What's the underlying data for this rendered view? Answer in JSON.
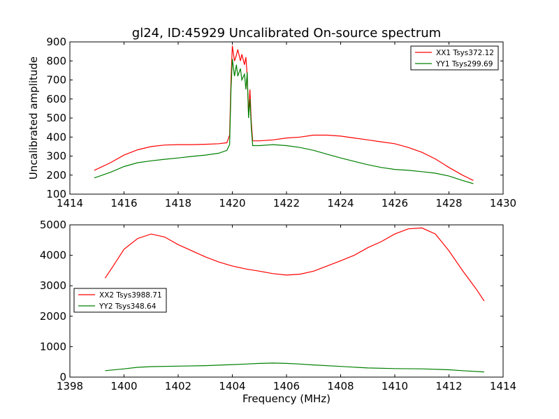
{
  "title": "gl24, ID:45929 Uncalibrated On-source spectrum",
  "colors": {
    "xx": "#ff0000",
    "yy": "#008000"
  },
  "chart_data": [
    {
      "type": "line",
      "ylabel": "Uncalibrated amplitude",
      "xlim": [
        1414,
        1430
      ],
      "ylim": [
        100,
        900
      ],
      "xticks": [
        1414,
        1416,
        1418,
        1420,
        1422,
        1424,
        1426,
        1428,
        1430
      ],
      "yticks": [
        100,
        200,
        300,
        400,
        500,
        600,
        700,
        800,
        900
      ],
      "legend_position": "top-right",
      "series": [
        {
          "name": "XX1 Tsys372.12",
          "color": "#ff0000",
          "points": [
            [
              1414.9,
              225
            ],
            [
              1415.5,
              265
            ],
            [
              1416,
              305
            ],
            [
              1416.5,
              333
            ],
            [
              1417,
              350
            ],
            [
              1417.5,
              358
            ],
            [
              1418,
              360
            ],
            [
              1418.5,
              360
            ],
            [
              1419,
              362
            ],
            [
              1419.5,
              365
            ],
            [
              1419.8,
              370
            ],
            [
              1419.9,
              410
            ],
            [
              1419.95,
              700
            ],
            [
              1420.0,
              880
            ],
            [
              1420.08,
              800
            ],
            [
              1420.15,
              830
            ],
            [
              1420.2,
              860
            ],
            [
              1420.3,
              800
            ],
            [
              1420.35,
              835
            ],
            [
              1420.45,
              780
            ],
            [
              1420.5,
              820
            ],
            [
              1420.55,
              720
            ],
            [
              1420.6,
              520
            ],
            [
              1420.65,
              650
            ],
            [
              1420.7,
              480
            ],
            [
              1420.75,
              380
            ],
            [
              1421,
              380
            ],
            [
              1421.5,
              385
            ],
            [
              1422,
              395
            ],
            [
              1422.5,
              400
            ],
            [
              1423,
              410
            ],
            [
              1423.5,
              410
            ],
            [
              1424,
              405
            ],
            [
              1424.5,
              395
            ],
            [
              1425,
              385
            ],
            [
              1425.5,
              375
            ],
            [
              1426,
              365
            ],
            [
              1426.5,
              345
            ],
            [
              1427,
              320
            ],
            [
              1427.5,
              285
            ],
            [
              1428,
              240
            ],
            [
              1428.5,
              200
            ],
            [
              1428.9,
              172
            ]
          ]
        },
        {
          "name": "YY1 Tsys299.69",
          "color": "#008000",
          "points": [
            [
              1414.9,
              185
            ],
            [
              1415.5,
              215
            ],
            [
              1416,
              245
            ],
            [
              1416.5,
              265
            ],
            [
              1417,
              275
            ],
            [
              1417.5,
              283
            ],
            [
              1418,
              290
            ],
            [
              1418.5,
              298
            ],
            [
              1419,
              305
            ],
            [
              1419.5,
              315
            ],
            [
              1419.8,
              330
            ],
            [
              1419.9,
              360
            ],
            [
              1419.95,
              650
            ],
            [
              1420.0,
              810
            ],
            [
              1420.08,
              720
            ],
            [
              1420.15,
              780
            ],
            [
              1420.2,
              720
            ],
            [
              1420.3,
              760
            ],
            [
              1420.35,
              700
            ],
            [
              1420.45,
              730
            ],
            [
              1420.5,
              650
            ],
            [
              1420.55,
              740
            ],
            [
              1420.6,
              500
            ],
            [
              1420.65,
              600
            ],
            [
              1420.7,
              450
            ],
            [
              1420.75,
              355
            ],
            [
              1421,
              355
            ],
            [
              1421.5,
              360
            ],
            [
              1422,
              355
            ],
            [
              1422.5,
              345
            ],
            [
              1423,
              330
            ],
            [
              1423.5,
              310
            ],
            [
              1424,
              290
            ],
            [
              1424.5,
              272
            ],
            [
              1425,
              255
            ],
            [
              1425.5,
              240
            ],
            [
              1426,
              230
            ],
            [
              1426.5,
              225
            ],
            [
              1427,
              218
            ],
            [
              1427.5,
              210
            ],
            [
              1428,
              195
            ],
            [
              1428.5,
              172
            ],
            [
              1428.9,
              155
            ]
          ]
        }
      ]
    },
    {
      "type": "line",
      "xlabel": "Frequency (MHz)",
      "xlim": [
        1398,
        1414
      ],
      "ylim": [
        0,
        5000
      ],
      "xticks": [
        1398,
        1400,
        1402,
        1404,
        1406,
        1408,
        1410,
        1412,
        1414
      ],
      "yticks": [
        0,
        1000,
        2000,
        3000,
        4000,
        5000
      ],
      "legend_position": "center-left",
      "series": [
        {
          "name": "XX2 Tsys3988.71",
          "color": "#ff0000",
          "points": [
            [
              1399.3,
              3250
            ],
            [
              1399.6,
              3650
            ],
            [
              1400,
              4200
            ],
            [
              1400.5,
              4550
            ],
            [
              1401,
              4700
            ],
            [
              1401.5,
              4600
            ],
            [
              1402,
              4350
            ],
            [
              1402.5,
              4150
            ],
            [
              1403,
              3950
            ],
            [
              1403.5,
              3780
            ],
            [
              1404,
              3650
            ],
            [
              1404.5,
              3550
            ],
            [
              1405,
              3480
            ],
            [
              1405.5,
              3400
            ],
            [
              1406,
              3350
            ],
            [
              1406.5,
              3380
            ],
            [
              1407,
              3480
            ],
            [
              1407.5,
              3650
            ],
            [
              1408,
              3820
            ],
            [
              1408.5,
              4000
            ],
            [
              1409,
              4250
            ],
            [
              1409.5,
              4450
            ],
            [
              1410,
              4700
            ],
            [
              1410.5,
              4870
            ],
            [
              1411,
              4900
            ],
            [
              1411.5,
              4700
            ],
            [
              1412,
              4150
            ],
            [
              1412.5,
              3500
            ],
            [
              1413,
              2900
            ],
            [
              1413.3,
              2500
            ]
          ]
        },
        {
          "name": "YY2 Tsys348.64",
          "color": "#008000",
          "points": [
            [
              1399.3,
              210
            ],
            [
              1400,
              270
            ],
            [
              1400.5,
              320
            ],
            [
              1401,
              345
            ],
            [
              1402,
              360
            ],
            [
              1403,
              375
            ],
            [
              1404,
              410
            ],
            [
              1404.5,
              430
            ],
            [
              1405,
              450
            ],
            [
              1405.5,
              460
            ],
            [
              1406,
              450
            ],
            [
              1406.5,
              430
            ],
            [
              1407,
              400
            ],
            [
              1408,
              350
            ],
            [
              1409,
              300
            ],
            [
              1410,
              280
            ],
            [
              1411,
              270
            ],
            [
              1412,
              240
            ],
            [
              1412.5,
              210
            ],
            [
              1413.3,
              170
            ]
          ]
        }
      ]
    }
  ]
}
